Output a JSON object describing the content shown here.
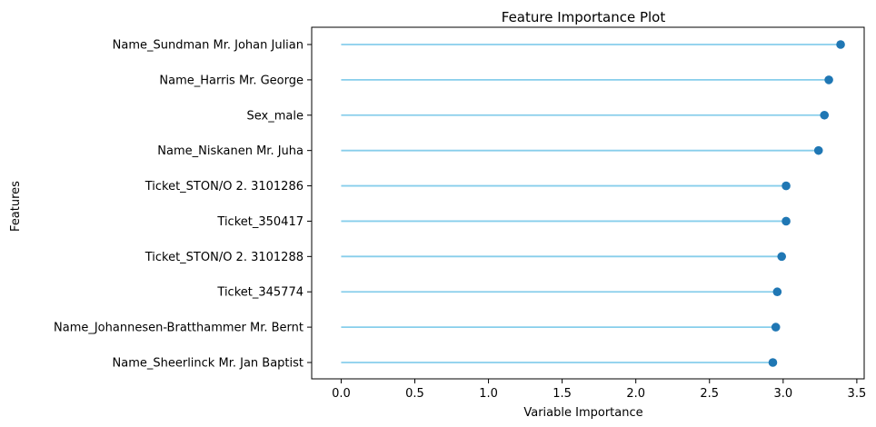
{
  "chart_data": {
    "type": "lollipop",
    "title": "Feature Importance Plot",
    "xlabel": "Variable Importance",
    "ylabel": "Features",
    "xlim": [
      -0.2,
      3.55
    ],
    "xticks": [
      0.0,
      0.5,
      1.0,
      1.5,
      2.0,
      2.5,
      3.0,
      3.5
    ],
    "xtick_labels": [
      "0.0",
      "0.5",
      "1.0",
      "1.5",
      "2.0",
      "2.5",
      "3.0",
      "3.5"
    ],
    "grid": false,
    "legend": "none",
    "categories": [
      "Name_Sundman Mr. Johan Julian",
      "Name_Harris Mr. George",
      "Sex_male",
      "Name_Niskanen Mr. Juha",
      "Ticket_STON/O 2. 3101286",
      "Ticket_350417",
      "Ticket_STON/O 2. 3101288",
      "Ticket_345774",
      "Name_Johannesen-Bratthammer Mr. Bernt",
      "Name_Sheerlinck Mr. Jan Baptist"
    ],
    "values": [
      3.39,
      3.31,
      3.28,
      3.24,
      3.02,
      3.02,
      2.99,
      2.96,
      2.95,
      2.93
    ],
    "colors": {
      "stem": "#87ceeb",
      "marker": "#1f77b4",
      "axes": "#000000"
    }
  }
}
